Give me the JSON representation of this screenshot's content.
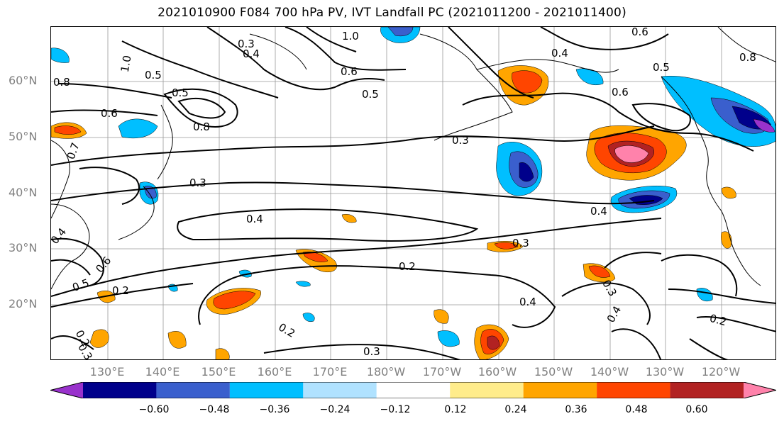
{
  "title": "2021010900 F084 700 hPa PV, IVT Landfall PC (2021011200 - 2021011400)",
  "axes": {
    "lat_labels": [
      "60°N",
      "50°N",
      "40°N",
      "30°N",
      "20°N"
    ],
    "lon_labels": [
      "130°E",
      "140°E",
      "150°E",
      "160°E",
      "170°E",
      "180°W",
      "170°W",
      "160°W",
      "150°W",
      "140°W",
      "130°W",
      "120°W"
    ]
  },
  "contour_labels": [
    "0.3",
    "0.4",
    "1.0",
    "1.0",
    "0.8",
    "0.5",
    "0.6",
    "0.8",
    "0.6",
    "0.5",
    "0.8",
    "0.6",
    "0.5",
    "0.3",
    "0.4",
    "0.5",
    "0.6",
    "0.7",
    "0.3",
    "0.4",
    "0.3",
    "0.4",
    "0.2",
    "0.4",
    "0.5",
    "0.6",
    "0.2",
    "0.2",
    "0.3",
    "0.4",
    "0.3",
    "0.4",
    "0.2",
    "0.2",
    "0.3"
  ],
  "colorbar": {
    "ticks": [
      "−0.60",
      "−0.48",
      "−0.36",
      "−0.24",
      "−0.12",
      "0.12",
      "0.24",
      "0.36",
      "0.48",
      "0.60"
    ],
    "colors": [
      "#9932CC",
      "#00008B",
      "#3A5FCD",
      "#00BFFF",
      "#B0E2FF",
      "#FFFFFF",
      "#FFEC8B",
      "#FFA500",
      "#FF4500",
      "#B22222",
      "#FF82AB"
    ]
  }
}
